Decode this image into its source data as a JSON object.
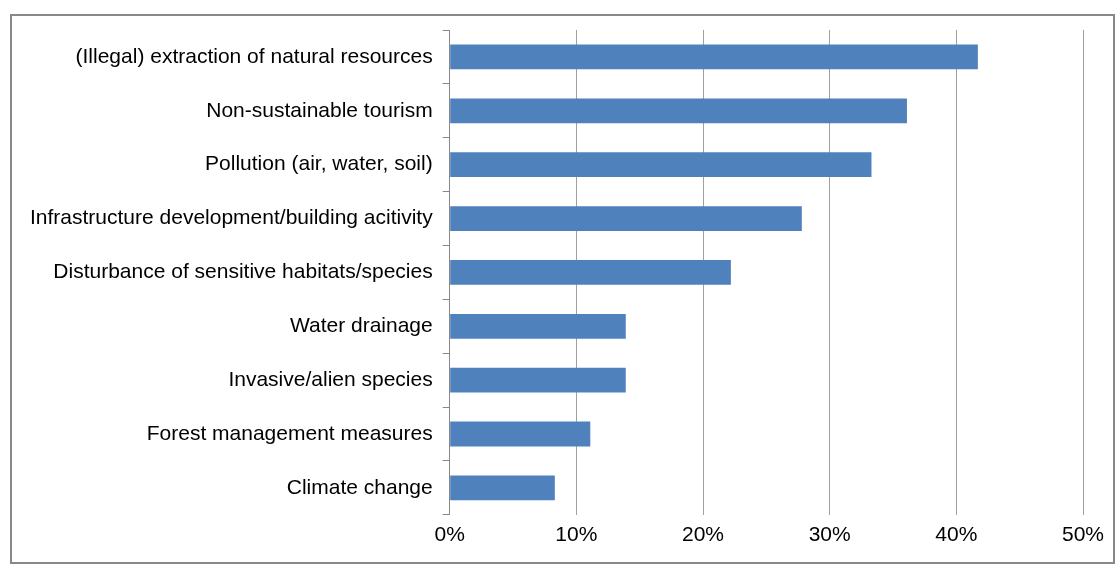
{
  "chart_data": {
    "type": "bar",
    "orientation": "horizontal",
    "categories": [
      "(Illegal) extraction of natural resources",
      "Non-sustainable tourism",
      "Pollution (air, water, soil)",
      "Infrastructure development/building acitivity",
      "Disturbance of sensitive habitats/species",
      "Water drainage",
      "Invasive/alien species",
      "Forest management measures",
      "Climate change"
    ],
    "values": [
      41.7,
      36.1,
      33.3,
      27.8,
      22.2,
      13.9,
      13.9,
      11.1,
      8.3
    ],
    "color": "#4f81bd",
    "xlim": [
      0,
      50
    ],
    "xticks": [
      {
        "value": 0,
        "label": "0%"
      },
      {
        "value": 10,
        "label": "10%"
      },
      {
        "value": 20,
        "label": "20%"
      },
      {
        "value": 30,
        "label": "30%"
      },
      {
        "value": 40,
        "label": "40%"
      },
      {
        "value": 50,
        "label": "50%"
      }
    ],
    "grid": "x",
    "legend": false
  }
}
